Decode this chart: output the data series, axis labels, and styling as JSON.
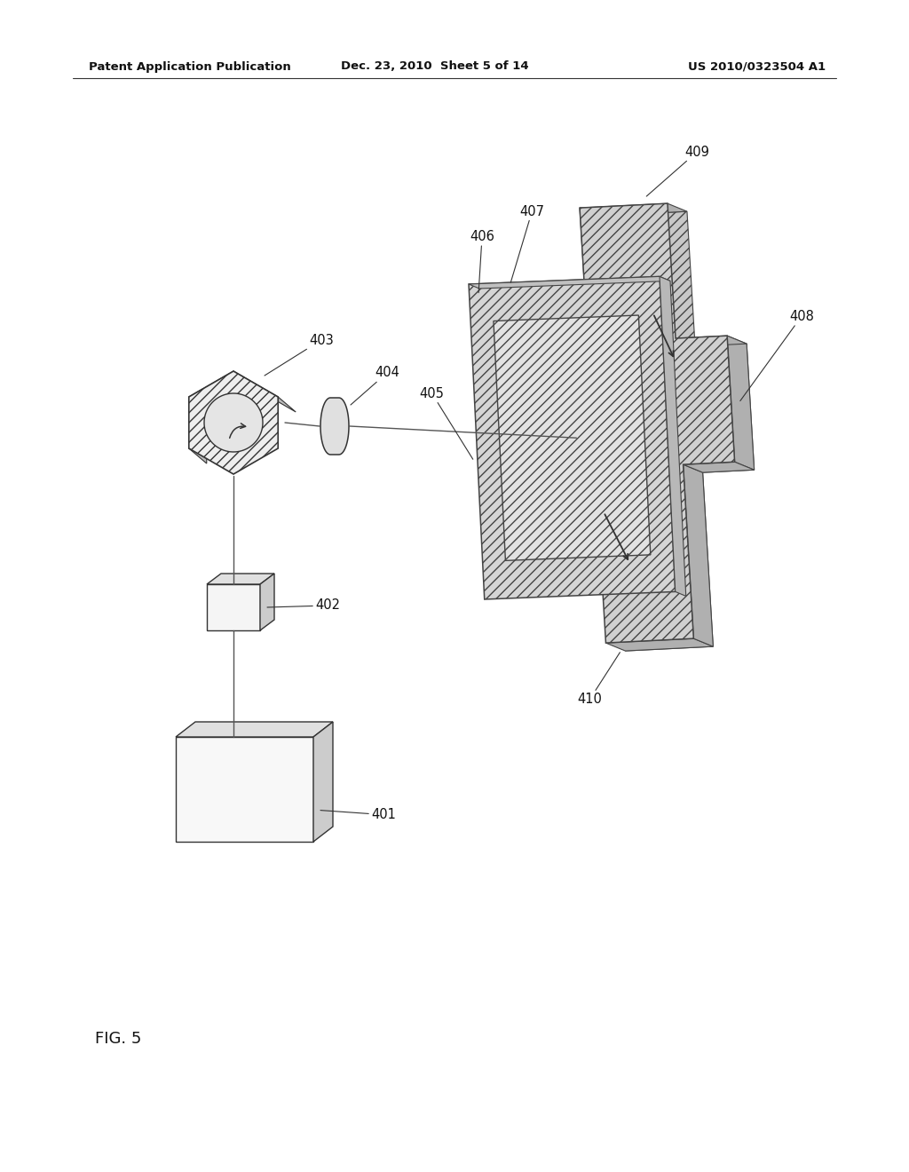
{
  "background_color": "#ffffff",
  "header_left": "Patent Application Publication",
  "header_mid": "Dec. 23, 2010  Sheet 5 of 14",
  "header_right": "US 2010/0323504 A1",
  "fig_label": "FIG. 5",
  "hatch": "///",
  "label_fontsize": 10.5
}
